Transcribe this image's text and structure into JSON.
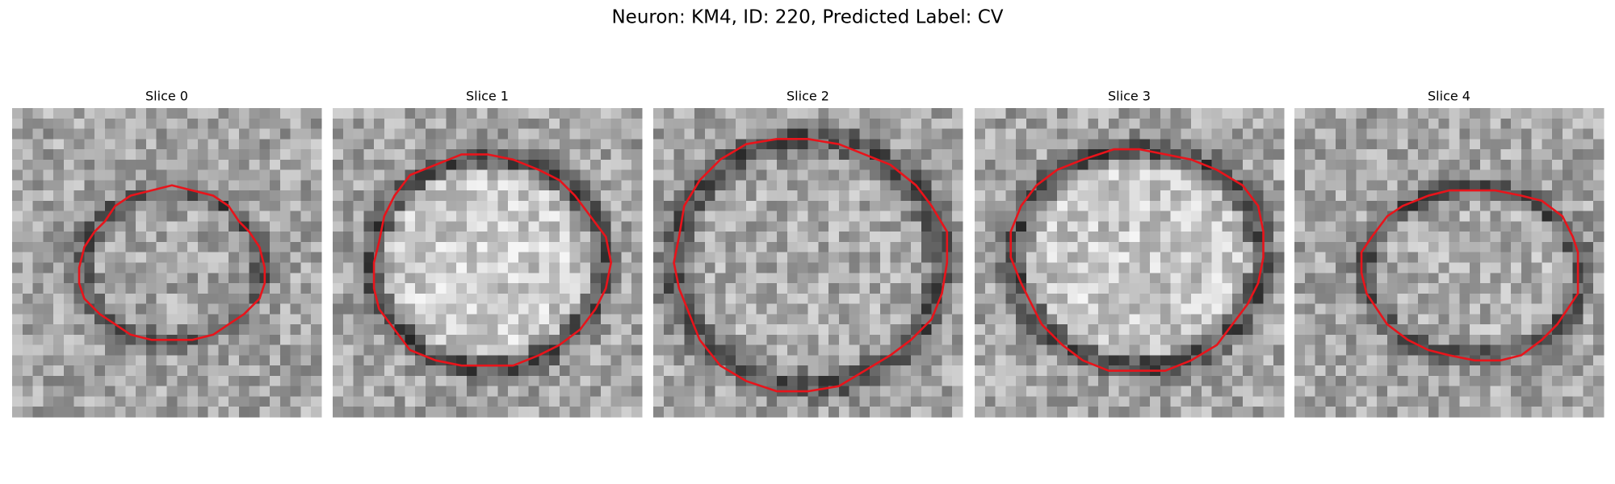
{
  "title": "Neuron: KM4, ID: 220, Predicted Label: CV",
  "panels": [
    {
      "title": "Slice 0"
    },
    {
      "title": "Slice 1"
    },
    {
      "title": "Slice 2"
    },
    {
      "title": "Slice 3"
    },
    {
      "title": "Slice 4"
    }
  ]
}
